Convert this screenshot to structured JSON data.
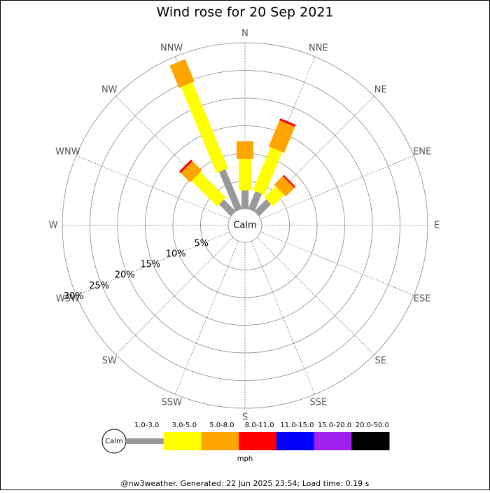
{
  "chart_data": {
    "type": "windrose",
    "title": "Wind rose for 20 Sep 2021",
    "categories": [
      "N",
      "NNE",
      "NE",
      "ENE",
      "E",
      "ESE",
      "SE",
      "SSE",
      "S",
      "SSW",
      "SW",
      "WSW",
      "W",
      "WNW",
      "NW",
      "NNW"
    ],
    "series": [
      {
        "name": "1.0-3.0",
        "color": "#999999",
        "values": [
          3.3,
          3.4,
          3.0,
          0,
          0,
          0,
          0,
          0,
          0,
          0,
          0,
          0,
          0,
          0,
          3.0,
          7.7
        ]
      },
      {
        "name": "3.0-5.0",
        "color": "#ffff00",
        "values": [
          5.7,
          8.4,
          2.9,
          0,
          0,
          0,
          0,
          0,
          0,
          0,
          0,
          0,
          0,
          0,
          6.5,
          16.8
        ]
      },
      {
        "name": "5.0-8.0",
        "color": "#ffa500",
        "values": [
          3.2,
          5.1,
          2.2,
          0,
          0,
          0,
          0,
          0,
          0,
          0,
          0,
          0,
          0,
          0,
          2.4,
          4.4
        ]
      },
      {
        "name": "8.0-11.0",
        "color": "#ff0000",
        "values": [
          0,
          0.4,
          0.3,
          0,
          0,
          0,
          0,
          0,
          0,
          0,
          0,
          0,
          0,
          0,
          0.4,
          0
        ]
      },
      {
        "name": "11.0-15.0",
        "color": "#0000ff",
        "values": [
          0,
          0,
          0,
          0,
          0,
          0,
          0,
          0,
          0,
          0,
          0,
          0,
          0,
          0,
          0,
          0
        ]
      },
      {
        "name": "15.0-20.0",
        "color": "#a020f0",
        "values": [
          0,
          0,
          0,
          0,
          0,
          0,
          0,
          0,
          0,
          0,
          0,
          0,
          0,
          0,
          0,
          0
        ]
      },
      {
        "name": "20.0-50.0",
        "color": "#000000",
        "values": [
          0,
          0,
          0,
          0,
          0,
          0,
          0,
          0,
          0,
          0,
          0,
          0,
          0,
          0,
          0,
          0
        ]
      }
    ],
    "rlim": [
      0,
      30
    ],
    "rticks": [
      {
        "value": 5,
        "label": "5%"
      },
      {
        "value": 10,
        "label": "10%"
      },
      {
        "value": 15,
        "label": "15%"
      },
      {
        "value": 20,
        "label": "20%"
      },
      {
        "value": 25,
        "label": "25%"
      },
      {
        "value": 30,
        "label": "30%"
      }
    ],
    "calm_label": "Calm",
    "unit": "mph",
    "footer": "@nw3weather. Generated: 22 Jun 2025 23:54; Load time: 0.19 s"
  }
}
